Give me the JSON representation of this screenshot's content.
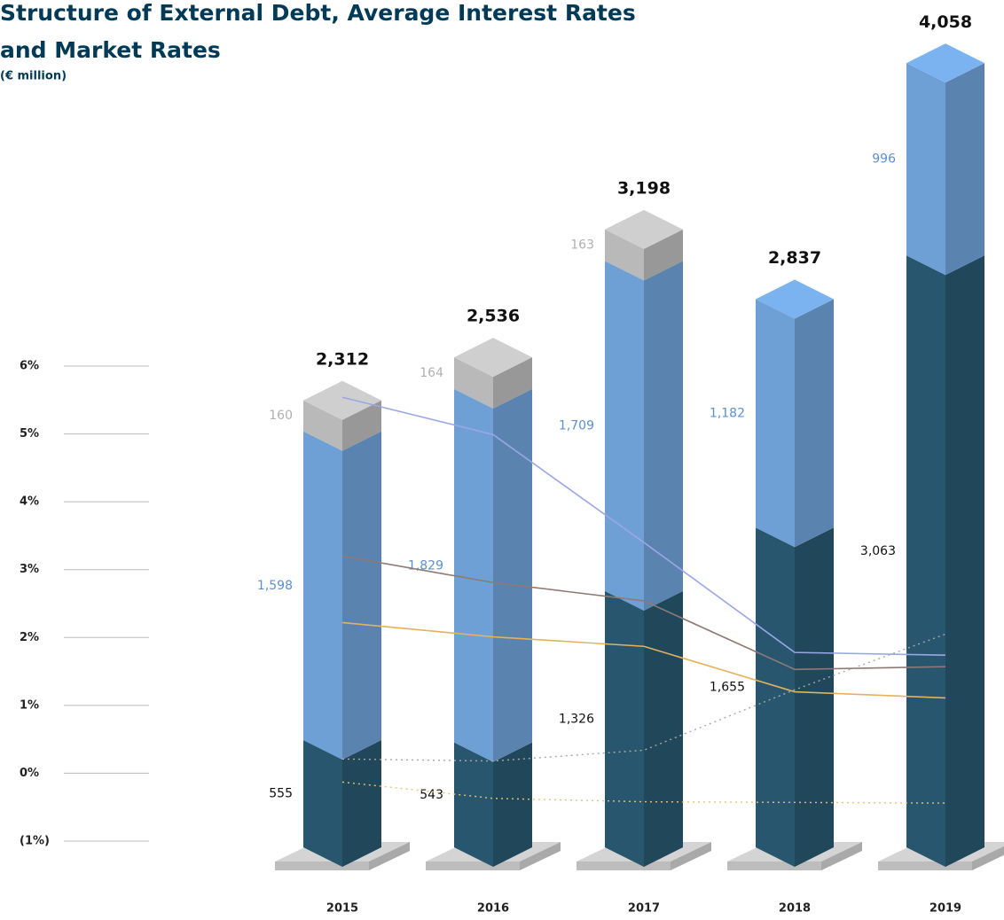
{
  "chart_data": {
    "type": "bar",
    "stacked": true,
    "title": "Structure of External Debt, Average Interest Rates",
    "title_line2": "and Market Rates",
    "subtitle": "(€ million)",
    "categories": [
      "2015",
      "2016",
      "2017",
      "2018",
      "2019"
    ],
    "totals": [
      2312,
      2536,
      3198,
      2837,
      4058
    ],
    "total_labels": [
      "2,312",
      "2,536",
      "3,198",
      "2,837",
      "4,058"
    ],
    "y2lim": [
      0,
      4000
    ],
    "ylim": [
      -1,
      6
    ],
    "yticks": [
      {
        "value": -1,
        "label": "(1%)"
      },
      {
        "value": 0,
        "label": "0%"
      },
      {
        "value": 1,
        "label": "1%"
      },
      {
        "value": 2,
        "label": "2%"
      },
      {
        "value": 3,
        "label": "3%"
      },
      {
        "value": 4,
        "label": "4%"
      },
      {
        "value": 5,
        "label": "5%"
      },
      {
        "value": 6,
        "label": "6%"
      }
    ],
    "series": [
      {
        "type": "bar",
        "axis": "y2",
        "color": "#27566e",
        "values": [
          555,
          543,
          1326,
          1655,
          3063
        ],
        "value_labels": [
          "555",
          "543",
          "1,326",
          "1,655",
          "3,063"
        ]
      },
      {
        "type": "bar",
        "axis": "y2",
        "color": "#6ea0d6",
        "values": [
          1598,
          1829,
          1709,
          1182,
          996
        ],
        "value_labels": [
          "1,598",
          "1,829",
          "1,709",
          "1,182",
          "996"
        ]
      },
      {
        "type": "bar",
        "axis": "y2",
        "color": "#b9b9b9",
        "values": [
          160,
          164,
          163,
          null,
          null
        ],
        "value_labels": [
          "160",
          "164",
          "163",
          null,
          null
        ]
      },
      {
        "type": "line",
        "color": "#9aa7e6",
        "style": "solid",
        "values": [
          5.54,
          4.99,
          3.4,
          1.78,
          1.74
        ]
      },
      {
        "type": "line",
        "color": "#8c7b74",
        "style": "solid",
        "values": [
          3.2,
          2.81,
          2.54,
          1.53,
          1.57
        ]
      },
      {
        "type": "line",
        "color": "#e5b15c",
        "style": "solid",
        "values": [
          2.22,
          2.01,
          1.87,
          1.2,
          1.11
        ]
      },
      {
        "type": "line",
        "color": "#a8a8a8",
        "style": "dotted",
        "values": [
          0.21,
          0.18,
          0.34,
          1.23,
          2.05
        ]
      },
      {
        "type": "line",
        "color": "#e8c27a",
        "style": "dotted",
        "values": [
          -0.13,
          -0.37,
          -0.42,
          -0.43,
          -0.44
        ]
      }
    ]
  }
}
